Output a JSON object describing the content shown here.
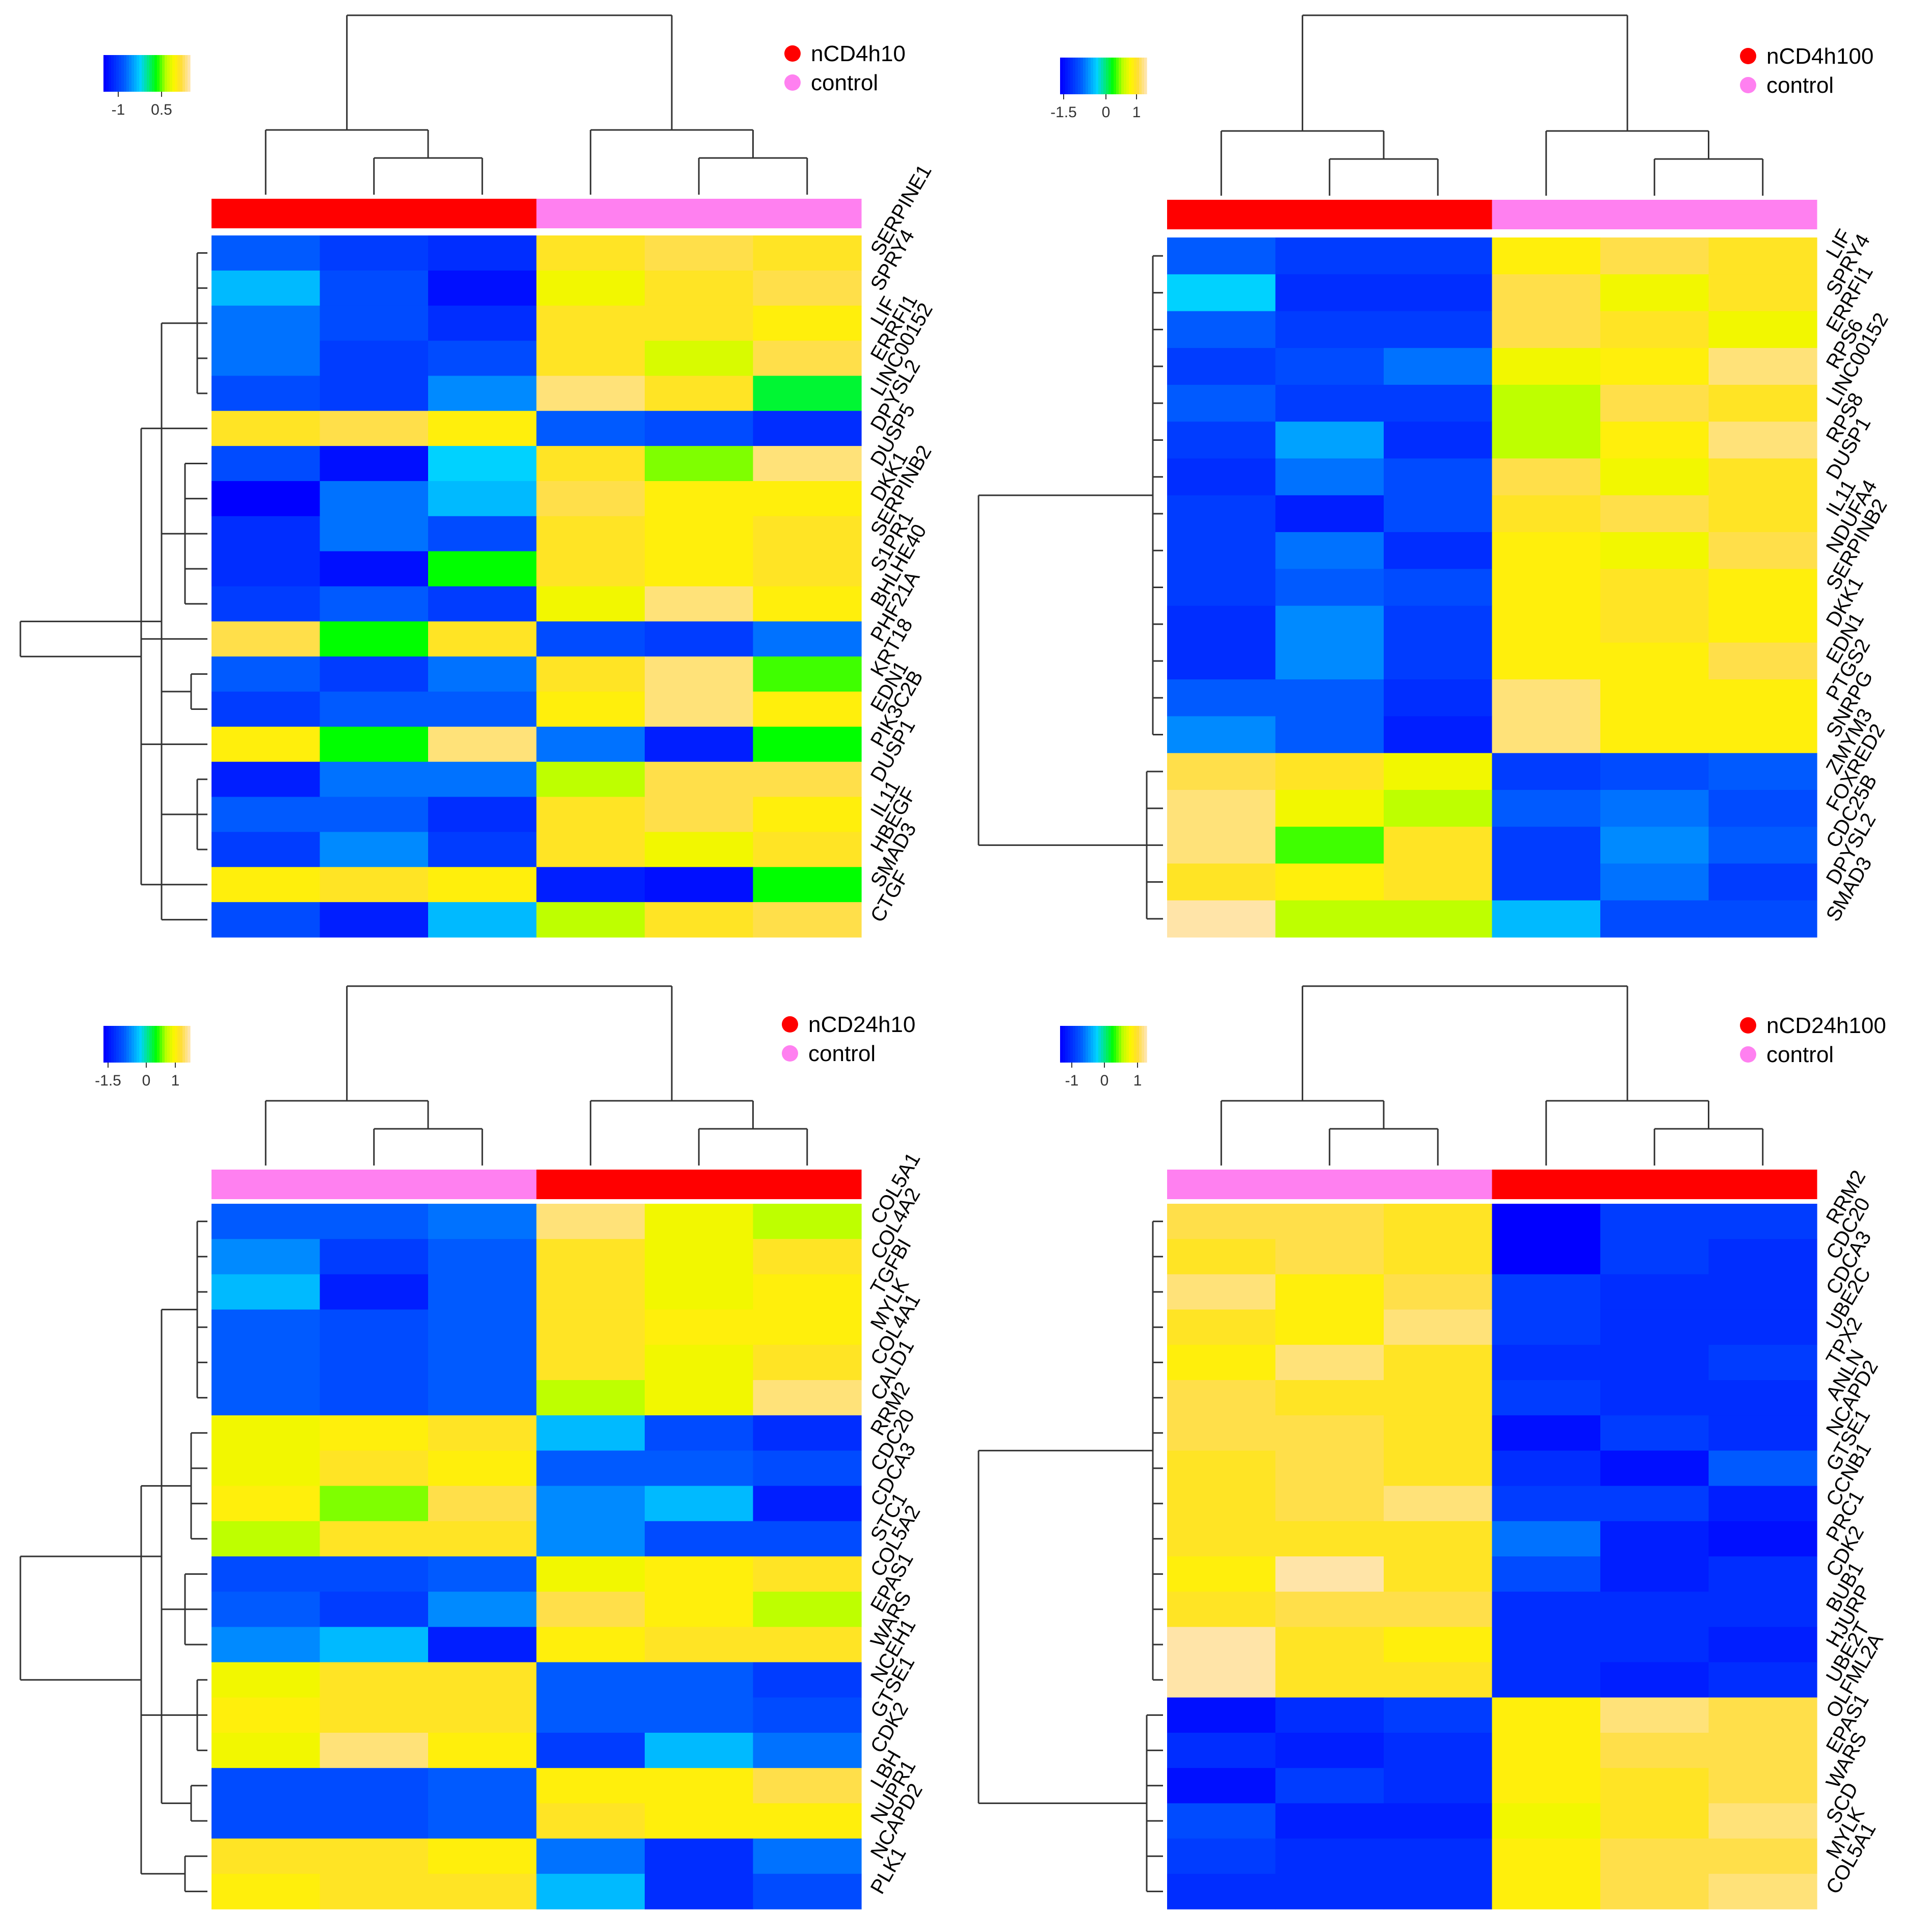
{
  "colors": {
    "treatment": "#ff0000",
    "control": "#ff80f0",
    "low": "#0000ff",
    "high": "#ffe4a8"
  },
  "chart_data": [
    {
      "type": "heatmap",
      "legend": {
        "treatment": "nCD4h10",
        "control": "control"
      },
      "scale_ticks": [
        "-1",
        "0.5"
      ],
      "column_groups": [
        "nCD4h10",
        "nCD4h10",
        "nCD4h10",
        "control",
        "control",
        "control"
      ],
      "rows": [
        "SERPINE1",
        "SPRY4",
        "LIF",
        "ERRFI1",
        "LINC00152",
        "DPYSL2",
        "DUSP5",
        "DKK1",
        "SERPINB2",
        "S1PR1",
        "BHLHE40",
        "PHF21A",
        "KRT18",
        "EDN1",
        "PIK3C2B",
        "DUSP1",
        "IL11",
        "HBEGF",
        "SMAD3",
        "CTGF"
      ],
      "values": [
        [
          -1.0,
          -1.2,
          -1.3,
          0.7,
          0.8,
          0.7
        ],
        [
          -0.6,
          -1.1,
          -1.5,
          0.5,
          0.7,
          0.8
        ],
        [
          -0.9,
          -1.1,
          -1.3,
          0.7,
          0.7,
          0.6
        ],
        [
          -0.9,
          -1.2,
          -1.1,
          0.7,
          0.4,
          0.8
        ],
        [
          -1.1,
          -1.2,
          -0.8,
          0.9,
          0.7,
          -0.1
        ],
        [
          0.7,
          0.8,
          0.6,
          -1.0,
          -1.1,
          -1.3
        ],
        [
          -1.1,
          -1.5,
          -0.5,
          0.7,
          0.2,
          0.9
        ],
        [
          -1.6,
          -0.9,
          -0.6,
          0.8,
          0.6,
          0.6
        ],
        [
          -1.3,
          -0.9,
          -1.1,
          0.7,
          0.6,
          0.7
        ],
        [
          -1.3,
          -1.5,
          0.0,
          0.7,
          0.6,
          0.7
        ],
        [
          -1.2,
          -1.0,
          -1.2,
          0.5,
          0.9,
          0.6
        ],
        [
          0.8,
          0.0,
          0.7,
          -1.1,
          -1.2,
          -0.9
        ],
        [
          -1.0,
          -1.2,
          -0.9,
          0.7,
          0.9,
          0.1
        ],
        [
          -1.2,
          -1.0,
          -1.0,
          0.6,
          0.9,
          0.6
        ],
        [
          0.6,
          0.0,
          0.9,
          -0.9,
          -1.4,
          0.0
        ],
        [
          -1.4,
          -0.9,
          -0.9,
          0.3,
          0.8,
          0.8
        ],
        [
          -1.0,
          -1.0,
          -1.3,
          0.7,
          0.8,
          0.6
        ],
        [
          -1.2,
          -0.8,
          -1.2,
          0.7,
          0.5,
          0.7
        ],
        [
          0.6,
          0.7,
          0.6,
          -1.4,
          -1.5,
          0.0
        ],
        [
          -1.1,
          -1.4,
          -0.6,
          0.3,
          0.7,
          0.8
        ]
      ]
    },
    {
      "type": "heatmap",
      "legend": {
        "treatment": "nCD4h100",
        "control": "control"
      },
      "scale_ticks": [
        "-1.5",
        "0",
        "1"
      ],
      "column_groups": [
        "nCD4h100",
        "nCD4h100",
        "nCD4h100",
        "control",
        "control",
        "control"
      ],
      "rows": [
        "LIF",
        "SPRY4",
        "ERRFI1",
        "RPS6",
        "LINC00152",
        "RPS8",
        "DUSP1",
        "IL11",
        "NDUFA4",
        "SERPINB2",
        "DKK1",
        "EDN1",
        "PTGS2",
        "SNRPG",
        "ZMYM3",
        "FOXRED2",
        "CDC25B",
        "DPYSL2",
        "SMAD3"
      ],
      "values": [
        [
          -1.0,
          -1.2,
          -1.2,
          0.6,
          0.8,
          0.7
        ],
        [
          -0.5,
          -1.3,
          -1.3,
          0.8,
          0.5,
          0.7
        ],
        [
          -1.0,
          -1.2,
          -1.2,
          0.8,
          0.7,
          0.5
        ],
        [
          -1.2,
          -1.1,
          -0.9,
          0.5,
          0.6,
          0.9
        ],
        [
          -1.0,
          -1.2,
          -1.2,
          0.3,
          0.8,
          0.7
        ],
        [
          -1.2,
          -0.7,
          -1.3,
          0.3,
          0.6,
          0.9
        ],
        [
          -1.3,
          -0.9,
          -1.1,
          0.8,
          0.5,
          0.7
        ],
        [
          -1.2,
          -1.4,
          -1.1,
          0.7,
          0.8,
          0.7
        ],
        [
          -1.2,
          -0.9,
          -1.3,
          0.6,
          0.5,
          0.8
        ],
        [
          -1.2,
          -1.0,
          -1.1,
          0.6,
          0.7,
          0.6
        ],
        [
          -1.3,
          -0.8,
          -1.2,
          0.6,
          0.7,
          0.6
        ],
        [
          -1.3,
          -0.8,
          -1.2,
          0.6,
          0.6,
          0.8
        ],
        [
          -1.0,
          -1.0,
          -1.3,
          0.9,
          0.6,
          0.6
        ],
        [
          -0.8,
          -1.0,
          -1.4,
          0.9,
          0.6,
          0.6
        ],
        [
          0.8,
          0.7,
          0.5,
          -1.2,
          -1.1,
          -1.0
        ],
        [
          0.9,
          0.5,
          0.3,
          -1.0,
          -0.9,
          -1.1
        ],
        [
          0.9,
          0.1,
          0.7,
          -1.2,
          -0.8,
          -1.0
        ],
        [
          0.7,
          0.6,
          0.7,
          -1.2,
          -0.9,
          -1.2
        ],
        [
          1.0,
          0.3,
          0.3,
          -0.6,
          -1.1,
          -1.1
        ]
      ]
    },
    {
      "type": "heatmap",
      "legend": {
        "treatment": "nCD24h10",
        "control": "control"
      },
      "scale_ticks": [
        "-1.5",
        "0",
        "1"
      ],
      "column_groups": [
        "control",
        "control",
        "control",
        "nCD24h10",
        "nCD24h10",
        "nCD24h10"
      ],
      "rows": [
        "COL5A1",
        "COL4A2",
        "TGFBI",
        "MYLK",
        "COL4A1",
        "CALD1",
        "RRM2",
        "CDC20",
        "CDCA3",
        "STC1",
        "COL5A2",
        "EPAS1",
        "WARS",
        "NCEH1",
        "GTSE1",
        "CDK2",
        "LBH",
        "NUPR1",
        "NCAPD2",
        "PLK1"
      ],
      "values": [
        [
          -1.0,
          -1.0,
          -0.9,
          0.9,
          0.5,
          0.3
        ],
        [
          -0.8,
          -1.2,
          -1.0,
          0.7,
          0.5,
          0.7
        ],
        [
          -0.6,
          -1.4,
          -1.0,
          0.7,
          0.5,
          0.6
        ],
        [
          -1.0,
          -1.1,
          -1.0,
          0.7,
          0.6,
          0.6
        ],
        [
          -1.0,
          -1.1,
          -1.0,
          0.7,
          0.5,
          0.7
        ],
        [
          -1.0,
          -1.1,
          -1.0,
          0.3,
          0.5,
          0.9
        ],
        [
          0.5,
          0.6,
          0.7,
          -0.6,
          -1.1,
          -1.3
        ],
        [
          0.5,
          0.7,
          0.6,
          -1.0,
          -1.0,
          -1.1
        ],
        [
          0.6,
          0.2,
          0.8,
          -0.8,
          -0.6,
          -1.4
        ],
        [
          0.3,
          0.7,
          0.7,
          -0.8,
          -1.1,
          -1.1
        ],
        [
          -1.1,
          -1.1,
          -1.0,
          0.5,
          0.6,
          0.7
        ],
        [
          -1.0,
          -1.2,
          -0.8,
          0.8,
          0.6,
          0.3
        ],
        [
          -0.8,
          -0.6,
          -1.4,
          0.6,
          0.7,
          0.7
        ],
        [
          0.5,
          0.7,
          0.7,
          -1.0,
          -1.0,
          -1.2
        ],
        [
          0.6,
          0.7,
          0.7,
          -1.0,
          -1.0,
          -1.1
        ],
        [
          0.5,
          0.9,
          0.6,
          -1.2,
          -0.6,
          -0.9
        ],
        [
          -1.1,
          -1.1,
          -1.0,
          0.6,
          0.6,
          0.8
        ],
        [
          -1.1,
          -1.1,
          -1.0,
          0.7,
          0.6,
          0.6
        ],
        [
          0.7,
          0.7,
          0.6,
          -0.9,
          -1.3,
          -0.9
        ],
        [
          0.6,
          0.7,
          0.7,
          -0.6,
          -1.3,
          -1.1
        ]
      ]
    },
    {
      "type": "heatmap",
      "legend": {
        "treatment": "nCD24h100",
        "control": "control"
      },
      "scale_ticks": [
        "-1",
        "0",
        "1"
      ],
      "column_groups": [
        "control",
        "control",
        "control",
        "nCD24h100",
        "nCD24h100",
        "nCD24h100"
      ],
      "rows": [
        "RRM2",
        "CDC20",
        "CDCA3",
        "UBE2C",
        "TPX2",
        "ANLN",
        "NCAPD2",
        "GTSE1",
        "CCNB1",
        "PRC1",
        "CDK2",
        "BUB1",
        "HJURP",
        "UBE2T",
        "OLFML2A",
        "EPAS1",
        "WARS",
        "SCD",
        "MYLK",
        "COL5A1"
      ],
      "values": [
        [
          0.8,
          0.8,
          0.7,
          -1.6,
          -1.2,
          -1.2
        ],
        [
          0.7,
          0.8,
          0.7,
          -1.6,
          -1.2,
          -1.3
        ],
        [
          0.9,
          0.6,
          0.8,
          -1.2,
          -1.3,
          -1.3
        ],
        [
          0.7,
          0.6,
          0.9,
          -1.2,
          -1.3,
          -1.3
        ],
        [
          0.6,
          0.9,
          0.7,
          -1.3,
          -1.3,
          -1.2
        ],
        [
          0.8,
          0.7,
          0.7,
          -1.2,
          -1.3,
          -1.3
        ],
        [
          0.8,
          0.8,
          0.7,
          -1.5,
          -1.2,
          -1.3
        ],
        [
          0.7,
          0.8,
          0.7,
          -1.3,
          -1.5,
          -1.0
        ],
        [
          0.7,
          0.8,
          0.9,
          -1.2,
          -1.2,
          -1.4
        ],
        [
          0.7,
          0.7,
          0.7,
          -0.9,
          -1.4,
          -1.5
        ],
        [
          0.6,
          1.0,
          0.7,
          -1.1,
          -1.4,
          -1.3
        ],
        [
          0.7,
          0.8,
          0.8,
          -1.3,
          -1.3,
          -1.3
        ],
        [
          1.0,
          0.7,
          0.6,
          -1.3,
          -1.3,
          -1.4
        ],
        [
          1.0,
          0.7,
          0.7,
          -1.3,
          -1.4,
          -1.3
        ],
        [
          -1.5,
          -1.3,
          -1.2,
          0.6,
          0.9,
          0.8
        ],
        [
          -1.3,
          -1.4,
          -1.3,
          0.6,
          0.8,
          0.8
        ],
        [
          -1.5,
          -1.2,
          -1.3,
          0.6,
          0.7,
          0.8
        ],
        [
          -1.1,
          -1.4,
          -1.4,
          0.5,
          0.7,
          0.9
        ],
        [
          -1.2,
          -1.3,
          -1.3,
          0.6,
          0.8,
          0.8
        ],
        [
          -1.3,
          -1.3,
          -1.3,
          0.6,
          0.8,
          0.9
        ]
      ]
    }
  ]
}
